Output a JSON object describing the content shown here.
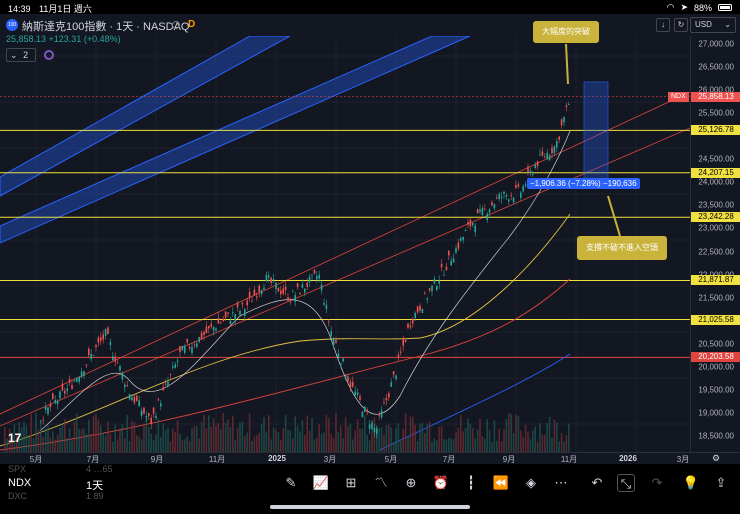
{
  "status_bar": {
    "time": "14:39",
    "date": "11月1日 週六",
    "battery": "88%"
  },
  "toolbar": {
    "symbol_badge": "100",
    "title": "納斯達克100指數 · 1天 · NASDAQ",
    "d_label": "D",
    "currency": "USD",
    "price_line": "25,858.13 +123.31 (+0.48%)",
    "indicator_count": "2"
  },
  "price_axis": {
    "ticks": [
      "27,000.00",
      "26,500.00",
      "26,000.00",
      "25,500.00",
      "24,500.00",
      "24,000.00",
      "23,500.00",
      "23,000.00",
      "22,500.00",
      "22,000.00",
      "21,500.00",
      "20,500.00",
      "20,000.00",
      "19,500.00",
      "19,000.00",
      "18,500.00"
    ],
    "tick_values": [
      27000,
      26500,
      26000,
      25500,
      24500,
      24000,
      23500,
      23000,
      22500,
      22000,
      21500,
      20500,
      20000,
      19500,
      19000,
      18500
    ],
    "ndx_tag": "NDX",
    "current_price": "25,858.13",
    "levels": [
      {
        "label": "25,126.78",
        "value": 25126.78,
        "color": "#f0e040"
      },
      {
        "label": "24,207.15",
        "value": 24207.15,
        "color": "#f0e040"
      },
      {
        "label": "23,242.28",
        "value": 23242.28,
        "color": "#f0e040"
      },
      {
        "label": "21,871.87",
        "value": 21871.87,
        "color": "#f0e040"
      },
      {
        "label": "21,025.58",
        "value": 21025.58,
        "color": "#f0e040"
      },
      {
        "label": "20,203.58",
        "value": 20203.58,
        "color": "#e0443e"
      }
    ]
  },
  "time_axis": {
    "ticks": [
      {
        "label": "5月"
      },
      {
        "label": "7月"
      },
      {
        "label": "9月"
      },
      {
        "label": "11月"
      },
      {
        "label": "2025",
        "bold": true
      },
      {
        "label": "3月"
      },
      {
        "label": "5月"
      },
      {
        "label": "7月"
      },
      {
        "label": "9月"
      },
      {
        "label": "11月"
      },
      {
        "label": "2026",
        "bold": true
      },
      {
        "label": "3月"
      }
    ]
  },
  "annotations": {
    "breakout": "大幅度的突破",
    "support": "支撐不破不進入空頭",
    "measure": "−1,906.36 (−7.28%) −190,636"
  },
  "watchlist": [
    {
      "symbol": "SPX",
      "value": "4 …65"
    },
    {
      "symbol": "NDX",
      "value": "1天"
    },
    {
      "symbol": "DXC",
      "value": "1 89"
    }
  ],
  "bottom_tools": [
    "draw-icon",
    "chart-type-icon",
    "layout-icon",
    "indicators-icon",
    "add-icon",
    "alert-icon",
    "candles-icon",
    "replay-icon",
    "layers-icon",
    "more-icon",
    "undo-icon",
    "fullscreen-exit-icon",
    "redo-icon",
    "ideas-icon",
    "share-icon"
  ],
  "colors": {
    "background": "#131722",
    "up": "#26a69a",
    "down": "#ef5350",
    "level": "#f0e040",
    "channel": "#2962ff"
  }
}
